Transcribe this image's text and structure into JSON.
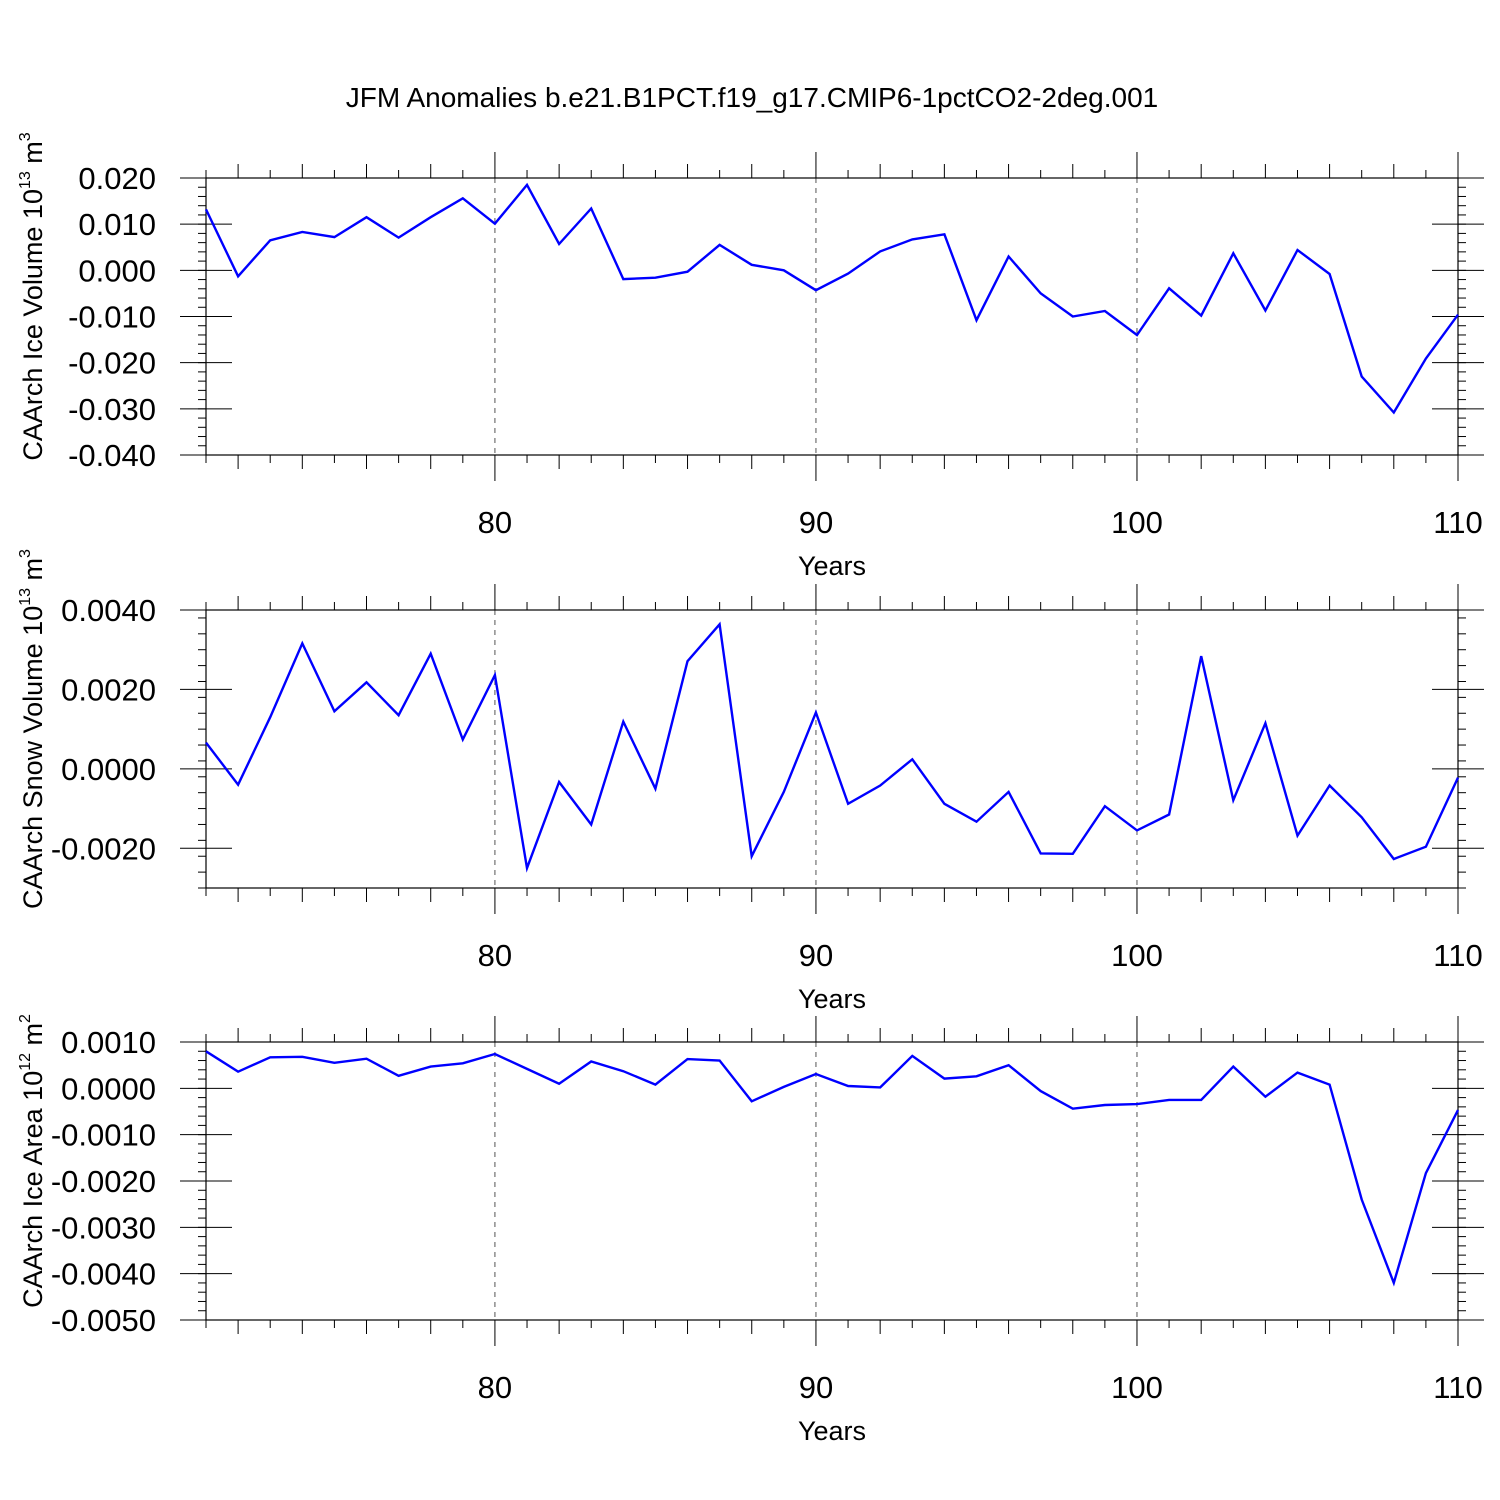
{
  "title": "JFM Anomalies b.e21.B1PCT.f19_g17.CMIP6-1pctCO2-2deg.001",
  "colors": {
    "series": "#0000ff",
    "axis": "#000000",
    "grid": "#555555"
  },
  "chart_data": [
    {
      "type": "line",
      "ylabel": "CAArch Ice Volume 10",
      "ylabel_exp": "13",
      "ylabel_unit": "m",
      "ylabel_unit_exp": "3",
      "xlabel": "Years",
      "xlim": [
        71,
        110
      ],
      "ylim": [
        -0.04,
        0.02
      ],
      "yticks": [
        0.02,
        0.01,
        0.0,
        -0.01,
        -0.02,
        -0.03,
        -0.04
      ],
      "ytick_labels": [
        "0.020",
        "0.010",
        "0.000",
        "-0.010",
        "-0.020",
        "-0.030",
        "-0.040"
      ],
      "xticks": [
        80,
        90,
        100,
        110
      ],
      "xtick_labels": [
        "80",
        "90",
        "100",
        "110"
      ],
      "x": [
        71,
        72,
        73,
        74,
        75,
        76,
        77,
        78,
        79,
        80,
        81,
        82,
        83,
        84,
        85,
        86,
        87,
        88,
        89,
        90,
        91,
        92,
        93,
        94,
        95,
        96,
        97,
        98,
        99,
        100,
        101,
        102,
        103,
        104,
        105,
        106,
        107,
        108,
        109,
        110
      ],
      "values": [
        0.0132,
        -0.0013,
        0.0065,
        0.0083,
        0.0072,
        0.0115,
        0.0071,
        0.0115,
        0.0156,
        0.0101,
        0.0185,
        0.0057,
        0.0134,
        -0.0019,
        -0.0016,
        -0.0003,
        0.0055,
        0.0012,
        0.0,
        -0.0043,
        -0.0007,
        0.0041,
        0.0067,
        0.0078,
        -0.0108,
        0.003,
        -0.005,
        -0.01,
        -0.0088,
        -0.014,
        -0.0039,
        -0.0098,
        0.0037,
        -0.0087,
        0.0044,
        -0.0008,
        -0.023,
        -0.0308,
        -0.0191,
        -0.0096
      ]
    },
    {
      "type": "line",
      "ylabel": "CAArch Snow Volume 10",
      "ylabel_exp": "13",
      "ylabel_unit": "m",
      "ylabel_unit_exp": "3",
      "xlabel": "Years",
      "xlim": [
        71,
        110
      ],
      "ylim": [
        -0.003,
        0.004
      ],
      "yticks": [
        0.004,
        0.002,
        0.0,
        -0.002
      ],
      "ytick_labels": [
        "0.0040",
        "0.0020",
        "0.0000",
        "-0.0020"
      ],
      "xticks": [
        80,
        90,
        100,
        110
      ],
      "xtick_labels": [
        "80",
        "90",
        "100",
        "110"
      ],
      "x": [
        71,
        72,
        73,
        74,
        75,
        76,
        77,
        78,
        79,
        80,
        81,
        82,
        83,
        84,
        85,
        86,
        87,
        88,
        89,
        90,
        91,
        92,
        93,
        94,
        95,
        96,
        97,
        98,
        99,
        100,
        101,
        102,
        103,
        104,
        105,
        106,
        107,
        108,
        109,
        110
      ],
      "values": [
        0.00066,
        -0.0004,
        0.0013,
        0.00316,
        0.00145,
        0.00218,
        0.00135,
        0.0029,
        0.00074,
        0.00236,
        -0.0025,
        -0.00033,
        -0.0014,
        0.00119,
        -0.0005,
        0.00271,
        0.00364,
        -0.0022,
        -0.00058,
        0.00142,
        -0.00088,
        -0.00042,
        0.00024,
        -0.00088,
        -0.00133,
        -0.00058,
        -0.00213,
        -0.00214,
        -0.00094,
        -0.00155,
        -0.00115,
        0.00284,
        -0.00079,
        0.00115,
        -0.00168,
        -0.00042,
        -0.00122,
        -0.00227,
        -0.00196,
        -0.00022
      ]
    },
    {
      "type": "line",
      "ylabel": "CAArch Ice Area 10",
      "ylabel_exp": "12",
      "ylabel_unit": "m",
      "ylabel_unit_exp": "2",
      "xlabel": "Years",
      "xlim": [
        71,
        110
      ],
      "ylim": [
        -0.005,
        0.001
      ],
      "yticks": [
        0.001,
        0.0,
        -0.001,
        -0.002,
        -0.003,
        -0.004,
        -0.005
      ],
      "ytick_labels": [
        "0.0010",
        "0.0000",
        "-0.0010",
        "-0.0020",
        "-0.0030",
        "-0.0040",
        "-0.0050"
      ],
      "xticks": [
        80,
        90,
        100,
        110
      ],
      "xtick_labels": [
        "80",
        "90",
        "100",
        "110"
      ],
      "x": [
        71,
        72,
        73,
        74,
        75,
        76,
        77,
        78,
        79,
        80,
        81,
        82,
        83,
        84,
        85,
        86,
        87,
        88,
        89,
        90,
        91,
        92,
        93,
        94,
        95,
        96,
        97,
        98,
        99,
        100,
        101,
        102,
        103,
        104,
        105,
        106,
        107,
        108,
        109,
        110
      ],
      "values": [
        0.0008,
        0.00036,
        0.00067,
        0.00068,
        0.00055,
        0.00064,
        0.00027,
        0.00047,
        0.00054,
        0.00074,
        0.00042,
        0.0001,
        0.00058,
        0.00037,
        8e-05,
        0.00063,
        0.0006,
        -0.00028,
        3e-05,
        0.00031,
        5e-05,
        2e-05,
        0.0007,
        0.00021,
        0.00026,
        0.0005,
        -6e-05,
        -0.00044,
        -0.00036,
        -0.00034,
        -0.00025,
        -0.00025,
        0.00047,
        -0.00018,
        0.00034,
        8e-05,
        -0.0024,
        -0.0042,
        -0.00183,
        -0.00047
      ]
    }
  ]
}
